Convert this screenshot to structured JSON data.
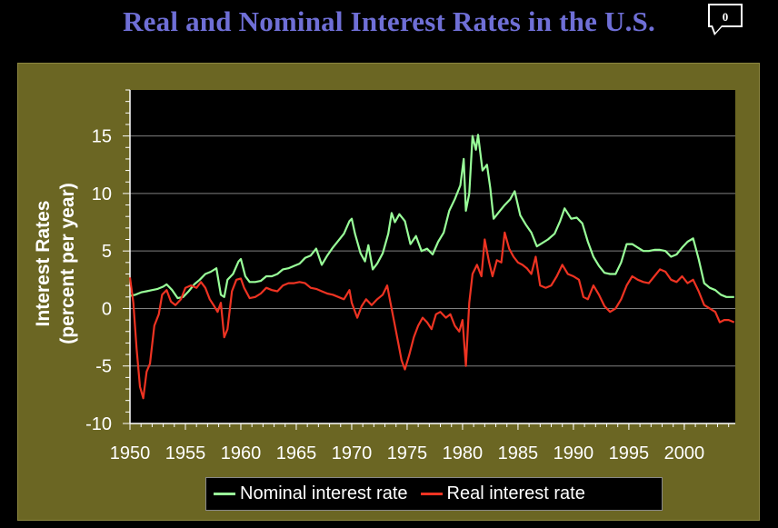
{
  "slide": {
    "comment_count": "0"
  },
  "colors": {
    "background": "#000000",
    "frame": "#6b6623",
    "title": "#6f6fd6",
    "nominal": "#99ff99",
    "real": "#ee3322",
    "grid": "#808080"
  },
  "chart_data": {
    "type": "line",
    "title": "Real and Nominal Interest Rates in the U.S.",
    "ylabel_line1": "Interest Rates",
    "ylabel_line2": "(percent per year)",
    "xlabel": "",
    "xlim": [
      1950,
      2004.6
    ],
    "ylim": [
      -10,
      19
    ],
    "xticks": [
      "1950",
      "1955",
      "1960",
      "1965",
      "1970",
      "1975",
      "1980",
      "1985",
      "1990",
      "1995",
      "2000"
    ],
    "yticks": [
      "15",
      "10",
      "5",
      "0",
      "-5",
      "-10"
    ],
    "grid": true,
    "legend_position": "bottom",
    "series": [
      {
        "name": "Nominal interest rate",
        "color": "#99ff99",
        "points": [
          [
            1950.0,
            1.1
          ],
          [
            1950.5,
            1.2
          ],
          [
            1951.0,
            1.4
          ],
          [
            1951.5,
            1.5
          ],
          [
            1952.0,
            1.6
          ],
          [
            1952.5,
            1.7
          ],
          [
            1953.0,
            1.9
          ],
          [
            1953.3,
            2.1
          ],
          [
            1953.8,
            1.6
          ],
          [
            1954.3,
            0.9
          ],
          [
            1954.8,
            1.0
          ],
          [
            1955.3,
            1.5
          ],
          [
            1955.8,
            2.1
          ],
          [
            1956.3,
            2.5
          ],
          [
            1956.8,
            3.0
          ],
          [
            1957.3,
            3.2
          ],
          [
            1957.8,
            3.5
          ],
          [
            1958.2,
            1.2
          ],
          [
            1958.5,
            1.0
          ],
          [
            1958.8,
            2.5
          ],
          [
            1959.3,
            3.0
          ],
          [
            1959.8,
            4.1
          ],
          [
            1960.0,
            4.3
          ],
          [
            1960.4,
            2.8
          ],
          [
            1960.8,
            2.3
          ],
          [
            1961.3,
            2.3
          ],
          [
            1961.8,
            2.4
          ],
          [
            1962.3,
            2.8
          ],
          [
            1962.8,
            2.8
          ],
          [
            1963.3,
            3.0
          ],
          [
            1963.8,
            3.4
          ],
          [
            1964.3,
            3.5
          ],
          [
            1964.8,
            3.7
          ],
          [
            1965.3,
            3.9
          ],
          [
            1965.8,
            4.4
          ],
          [
            1966.3,
            4.6
          ],
          [
            1966.8,
            5.2
          ],
          [
            1967.3,
            3.8
          ],
          [
            1967.8,
            4.6
          ],
          [
            1968.3,
            5.3
          ],
          [
            1968.8,
            5.9
          ],
          [
            1969.3,
            6.5
          ],
          [
            1969.8,
            7.6
          ],
          [
            1970.0,
            7.8
          ],
          [
            1970.3,
            6.5
          ],
          [
            1970.8,
            4.8
          ],
          [
            1971.2,
            4.1
          ],
          [
            1971.5,
            5.5
          ],
          [
            1971.9,
            3.4
          ],
          [
            1972.3,
            3.9
          ],
          [
            1972.8,
            4.8
          ],
          [
            1973.3,
            6.5
          ],
          [
            1973.6,
            8.3
          ],
          [
            1973.9,
            7.5
          ],
          [
            1974.3,
            8.2
          ],
          [
            1974.8,
            7.6
          ],
          [
            1975.3,
            5.6
          ],
          [
            1975.8,
            6.3
          ],
          [
            1976.3,
            5.0
          ],
          [
            1976.8,
            5.2
          ],
          [
            1977.3,
            4.7
          ],
          [
            1977.8,
            5.8
          ],
          [
            1978.3,
            6.6
          ],
          [
            1978.8,
            8.5
          ],
          [
            1979.3,
            9.5
          ],
          [
            1979.8,
            10.7
          ],
          [
            1980.1,
            13.0
          ],
          [
            1980.3,
            8.5
          ],
          [
            1980.6,
            10.0
          ],
          [
            1980.9,
            15.0
          ],
          [
            1981.2,
            13.8
          ],
          [
            1981.4,
            15.1
          ],
          [
            1981.8,
            12.0
          ],
          [
            1982.2,
            12.5
          ],
          [
            1982.5,
            10.5
          ],
          [
            1982.8,
            7.8
          ],
          [
            1983.3,
            8.4
          ],
          [
            1983.8,
            9.0
          ],
          [
            1984.3,
            9.5
          ],
          [
            1984.7,
            10.2
          ],
          [
            1985.2,
            8.1
          ],
          [
            1985.7,
            7.3
          ],
          [
            1986.2,
            6.6
          ],
          [
            1986.7,
            5.4
          ],
          [
            1987.2,
            5.7
          ],
          [
            1987.7,
            6.0
          ],
          [
            1988.3,
            6.5
          ],
          [
            1988.8,
            7.6
          ],
          [
            1989.2,
            8.7
          ],
          [
            1989.8,
            7.8
          ],
          [
            1990.3,
            7.9
          ],
          [
            1990.8,
            7.4
          ],
          [
            1991.3,
            5.8
          ],
          [
            1991.8,
            4.5
          ],
          [
            1992.3,
            3.7
          ],
          [
            1992.8,
            3.1
          ],
          [
            1993.3,
            3.0
          ],
          [
            1993.8,
            3.0
          ],
          [
            1994.3,
            4.0
          ],
          [
            1994.8,
            5.6
          ],
          [
            1995.3,
            5.6
          ],
          [
            1995.8,
            5.3
          ],
          [
            1996.3,
            5.0
          ],
          [
            1996.8,
            5.0
          ],
          [
            1997.3,
            5.1
          ],
          [
            1997.8,
            5.1
          ],
          [
            1998.3,
            5.0
          ],
          [
            1998.8,
            4.5
          ],
          [
            1999.3,
            4.7
          ],
          [
            1999.8,
            5.3
          ],
          [
            2000.3,
            5.8
          ],
          [
            2000.8,
            6.1
          ],
          [
            2001.3,
            4.3
          ],
          [
            2001.8,
            2.2
          ],
          [
            2002.3,
            1.8
          ],
          [
            2002.8,
            1.6
          ],
          [
            2003.3,
            1.2
          ],
          [
            2003.8,
            1.0
          ],
          [
            2004.5,
            1.0
          ]
        ]
      },
      {
        "name": "Real interest rate",
        "color": "#ee3322",
        "points": [
          [
            1950.0,
            2.7
          ],
          [
            1950.3,
            0.5
          ],
          [
            1950.6,
            -3.5
          ],
          [
            1950.9,
            -6.8
          ],
          [
            1951.2,
            -7.8
          ],
          [
            1951.5,
            -5.5
          ],
          [
            1951.8,
            -4.8
          ],
          [
            1952.2,
            -1.5
          ],
          [
            1952.6,
            -0.5
          ],
          [
            1952.9,
            1.2
          ],
          [
            1953.3,
            1.6
          ],
          [
            1953.7,
            0.6
          ],
          [
            1954.1,
            0.3
          ],
          [
            1954.6,
            0.8
          ],
          [
            1955.0,
            1.8
          ],
          [
            1955.5,
            2.0
          ],
          [
            1956.0,
            1.8
          ],
          [
            1956.4,
            2.3
          ],
          [
            1956.8,
            1.8
          ],
          [
            1957.2,
            0.8
          ],
          [
            1957.6,
            0.2
          ],
          [
            1957.9,
            -0.3
          ],
          [
            1958.2,
            0.5
          ],
          [
            1958.5,
            -2.5
          ],
          [
            1958.8,
            -1.8
          ],
          [
            1959.2,
            1.5
          ],
          [
            1959.6,
            2.5
          ],
          [
            1960.0,
            2.6
          ],
          [
            1960.3,
            1.8
          ],
          [
            1960.8,
            0.9
          ],
          [
            1961.3,
            1.0
          ],
          [
            1961.8,
            1.3
          ],
          [
            1962.3,
            1.8
          ],
          [
            1962.8,
            1.6
          ],
          [
            1963.3,
            1.5
          ],
          [
            1963.8,
            2.0
          ],
          [
            1964.3,
            2.2
          ],
          [
            1964.8,
            2.2
          ],
          [
            1965.3,
            2.3
          ],
          [
            1965.8,
            2.2
          ],
          [
            1966.3,
            1.8
          ],
          [
            1966.8,
            1.7
          ],
          [
            1967.3,
            1.5
          ],
          [
            1967.8,
            1.3
          ],
          [
            1968.3,
            1.2
          ],
          [
            1968.8,
            1.0
          ],
          [
            1969.3,
            0.8
          ],
          [
            1969.8,
            1.6
          ],
          [
            1970.0,
            0.5
          ],
          [
            1970.5,
            -0.8
          ],
          [
            1970.9,
            0.2
          ],
          [
            1971.3,
            0.8
          ],
          [
            1971.8,
            0.3
          ],
          [
            1972.3,
            0.8
          ],
          [
            1972.8,
            1.2
          ],
          [
            1973.2,
            2.0
          ],
          [
            1973.5,
            0.5
          ],
          [
            1973.8,
            -1.0
          ],
          [
            1974.2,
            -3.0
          ],
          [
            1974.5,
            -4.5
          ],
          [
            1974.8,
            -5.3
          ],
          [
            1975.2,
            -4.0
          ],
          [
            1975.6,
            -2.5
          ],
          [
            1976.0,
            -1.5
          ],
          [
            1976.4,
            -0.8
          ],
          [
            1976.8,
            -1.2
          ],
          [
            1977.2,
            -1.8
          ],
          [
            1977.6,
            -0.5
          ],
          [
            1978.0,
            -0.3
          ],
          [
            1978.5,
            -0.8
          ],
          [
            1978.9,
            -0.5
          ],
          [
            1979.3,
            -1.5
          ],
          [
            1979.7,
            -2.0
          ],
          [
            1980.0,
            -1.0
          ],
          [
            1980.3,
            -5.0
          ],
          [
            1980.6,
            0.5
          ],
          [
            1980.9,
            3.0
          ],
          [
            1981.3,
            3.8
          ],
          [
            1981.7,
            2.8
          ],
          [
            1982.0,
            6.0
          ],
          [
            1982.4,
            4.0
          ],
          [
            1982.7,
            2.8
          ],
          [
            1983.1,
            4.2
          ],
          [
            1983.5,
            4.0
          ],
          [
            1983.8,
            6.6
          ],
          [
            1984.2,
            5.2
          ],
          [
            1984.6,
            4.5
          ],
          [
            1985.0,
            4.0
          ],
          [
            1985.4,
            3.8
          ],
          [
            1985.8,
            3.5
          ],
          [
            1986.2,
            3.0
          ],
          [
            1986.6,
            4.5
          ],
          [
            1987.0,
            2.0
          ],
          [
            1987.5,
            1.8
          ],
          [
            1988.0,
            2.0
          ],
          [
            1988.5,
            2.8
          ],
          [
            1989.0,
            3.8
          ],
          [
            1989.5,
            3.0
          ],
          [
            1990.0,
            2.8
          ],
          [
            1990.5,
            2.5
          ],
          [
            1990.9,
            1.0
          ],
          [
            1991.3,
            0.8
          ],
          [
            1991.8,
            2.0
          ],
          [
            1992.3,
            1.2
          ],
          [
            1992.8,
            0.2
          ],
          [
            1993.3,
            -0.3
          ],
          [
            1993.8,
            0.0
          ],
          [
            1994.3,
            0.8
          ],
          [
            1994.8,
            2.0
          ],
          [
            1995.3,
            2.8
          ],
          [
            1995.8,
            2.5
          ],
          [
            1996.3,
            2.3
          ],
          [
            1996.8,
            2.2
          ],
          [
            1997.3,
            2.8
          ],
          [
            1997.8,
            3.4
          ],
          [
            1998.3,
            3.2
          ],
          [
            1998.8,
            2.5
          ],
          [
            1999.3,
            2.3
          ],
          [
            1999.8,
            2.8
          ],
          [
            2000.3,
            2.2
          ],
          [
            2000.8,
            2.5
          ],
          [
            2001.3,
            1.5
          ],
          [
            2001.8,
            0.3
          ],
          [
            2002.3,
            0.0
          ],
          [
            2002.8,
            -0.3
          ],
          [
            2003.2,
            -1.2
          ],
          [
            2003.6,
            -1.0
          ],
          [
            2004.0,
            -1.0
          ],
          [
            2004.5,
            -1.2
          ]
        ]
      }
    ]
  }
}
